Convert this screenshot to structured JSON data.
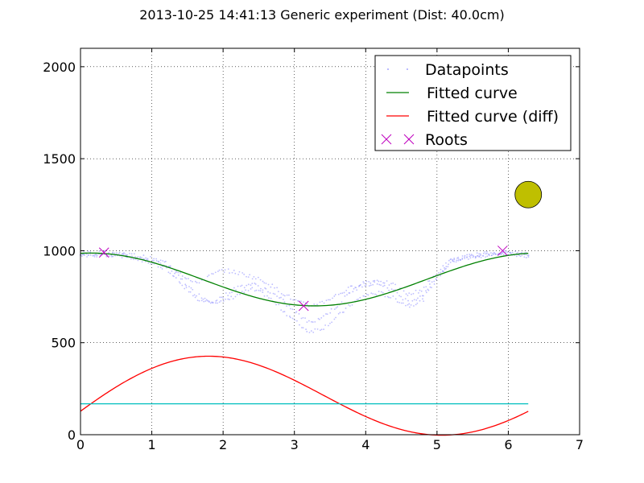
{
  "chart_data": {
    "type": "scatter",
    "title": "2013-10-25 14:41:13 Generic experiment (Dist: 40.0cm)",
    "xlabel": "",
    "ylabel": "",
    "xlim": [
      0,
      7
    ],
    "ylim": [
      0,
      2100
    ],
    "xticks": [
      0,
      1,
      2,
      3,
      4,
      5,
      6,
      7
    ],
    "yticks": [
      0,
      500,
      1000,
      1500,
      2000
    ],
    "grid": true,
    "legend_position": "top-right",
    "legend": [
      {
        "label": "Datapoints",
        "color": "#8888ff",
        "marker": "dots"
      },
      {
        "label": "Fitted curve",
        "color": "#008000",
        "marker": "line"
      },
      {
        "label": "Fitted curve (diff)",
        "color": "#ff0000",
        "marker": "line"
      },
      {
        "label": "Roots",
        "color": "#bf00bf",
        "marker": "x"
      }
    ],
    "series": [
      {
        "name": "Datapoints",
        "color": "#8888ff",
        "bands": [
          {
            "x": [
              0.0,
              0.3,
              0.6,
              0.9,
              1.2,
              1.4,
              1.6,
              1.8,
              2.0,
              2.2,
              2.4,
              2.6,
              2.8,
              3.0,
              3.2,
              3.4,
              3.6,
              3.8,
              4.0,
              4.2,
              4.4,
              4.6,
              4.8,
              5.0,
              5.2,
              5.5,
              5.8,
              6.0,
              6.28
            ],
            "y": [
              975,
              985,
              975,
              955,
              920,
              850,
              770,
              730,
              720,
              760,
              790,
              760,
              690,
              620,
              560,
              580,
              640,
              710,
              760,
              770,
              740,
              700,
              730,
              850,
              940,
              970,
              985,
              985,
              975
            ]
          },
          {
            "x": [
              0.0,
              0.3,
              0.6,
              0.9,
              1.2,
              1.4,
              1.6,
              1.8,
              2.0,
              2.2,
              2.4,
              2.6,
              2.8,
              3.0,
              3.2,
              3.4,
              3.6,
              3.8,
              4.0,
              4.2,
              4.4,
              4.6,
              4.8,
              5.0,
              5.2,
              5.5,
              5.8,
              6.0,
              6.28
            ],
            "y": [
              985,
              990,
              985,
              965,
              935,
              880,
              820,
              860,
              895,
              880,
              860,
              830,
              780,
              730,
              700,
              720,
              760,
              800,
              830,
              840,
              810,
              760,
              790,
              880,
              950,
              975,
              990,
              990,
              980
            ]
          },
          {
            "x": [
              0.0,
              0.3,
              0.6,
              0.9,
              1.2,
              1.4,
              1.6,
              1.8,
              2.0,
              2.2,
              2.4,
              2.6,
              2.8,
              3.0,
              3.2,
              3.4,
              3.6,
              3.8,
              4.0,
              4.2,
              4.4,
              4.6,
              4.8,
              5.0,
              5.2,
              5.5,
              5.8,
              6.0,
              6.28
            ],
            "y": [
              970,
              980,
              970,
              945,
              905,
              830,
              740,
              720,
              750,
              800,
              820,
              790,
              740,
              670,
              610,
              640,
              700,
              780,
              820,
              820,
              780,
              720,
              760,
              860,
              945,
              965,
              980,
              982,
              970
            ]
          }
        ]
      },
      {
        "name": "Fitted curve",
        "color": "#008000",
        "formula": "843.7 + 143.5*cos(x - 0.14)",
        "x_range": [
          0,
          6.28
        ]
      },
      {
        "name": "Fitted curve (diff)",
        "color": "#ff0000",
        "formula": "163.3 + 163.3*sin(x - 0.22) + 4.0*x*(x - 4.9)*(x - 6.28)",
        "x_range": [
          0,
          6.28
        ]
      },
      {
        "name": "",
        "color": "#00bfbf",
        "x": [
          0,
          6.28
        ],
        "y": [
          168,
          168
        ]
      },
      {
        "name": "Roots",
        "color": "#bf00bf",
        "marker": "x",
        "x": [
          0.33,
          3.13,
          5.92
        ],
        "y": [
          990,
          700,
          1000
        ]
      },
      {
        "name": "",
        "color": "#bfbf00",
        "marker": "circle",
        "x": [
          6.28
        ],
        "y": [
          1305
        ]
      }
    ]
  }
}
